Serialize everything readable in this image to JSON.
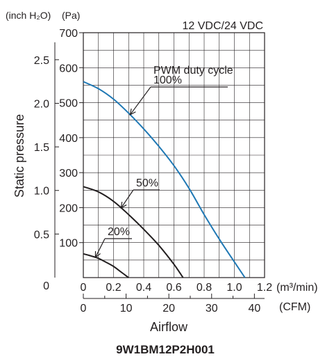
{
  "chart_data": {
    "type": "line",
    "title": "",
    "note": "12 VDC/24 VDC",
    "model": "9W1BM12P2H001",
    "xlabel": "Airflow",
    "ylabel": "Static pressure",
    "x_unit_primary": "(m³/min)",
    "x_unit_secondary": "(CFM)",
    "y_unit_primary": "(Pa)",
    "y_unit_secondary": "(inch H₂O)",
    "xlim": [
      0,
      1.2
    ],
    "ylim": [
      0,
      700
    ],
    "x_ticks": [
      "0",
      "0.2",
      "0.4",
      "0.6",
      "0.8",
      "1.0",
      "1.2"
    ],
    "cfm_ticks": [
      "0",
      "10",
      "20",
      "30",
      "40"
    ],
    "y_ticks": [
      "100",
      "200",
      "300",
      "400",
      "500",
      "600",
      "700"
    ],
    "inch_ticks": [
      "0.5",
      "1.0",
      "1.5",
      "2.0",
      "2.5"
    ],
    "inch_zero": "0",
    "x_zero": "0",
    "grid": true,
    "legend_title": "PWM duty cycle",
    "series": [
      {
        "name": "100%",
        "color": "#1f78b4",
        "x": [
          0,
          0.1,
          0.2,
          0.3,
          0.4,
          0.5,
          0.6,
          0.7,
          0.8,
          0.9,
          1.0,
          1.07
        ],
        "y": [
          560,
          540,
          510,
          470,
          425,
          375,
          320,
          255,
          180,
          110,
          45,
          0
        ]
      },
      {
        "name": "50%",
        "color": "#231f20",
        "x": [
          0,
          0.1,
          0.2,
          0.3,
          0.4,
          0.5,
          0.6,
          0.66
        ],
        "y": [
          260,
          245,
          218,
          180,
          138,
          92,
          38,
          0
        ]
      },
      {
        "name": "20%",
        "color": "#231f20",
        "x": [
          0,
          0.05,
          0.1,
          0.15,
          0.2,
          0.25,
          0.3
        ],
        "y": [
          68,
          62,
          55,
          44,
          32,
          16,
          0
        ]
      }
    ]
  }
}
